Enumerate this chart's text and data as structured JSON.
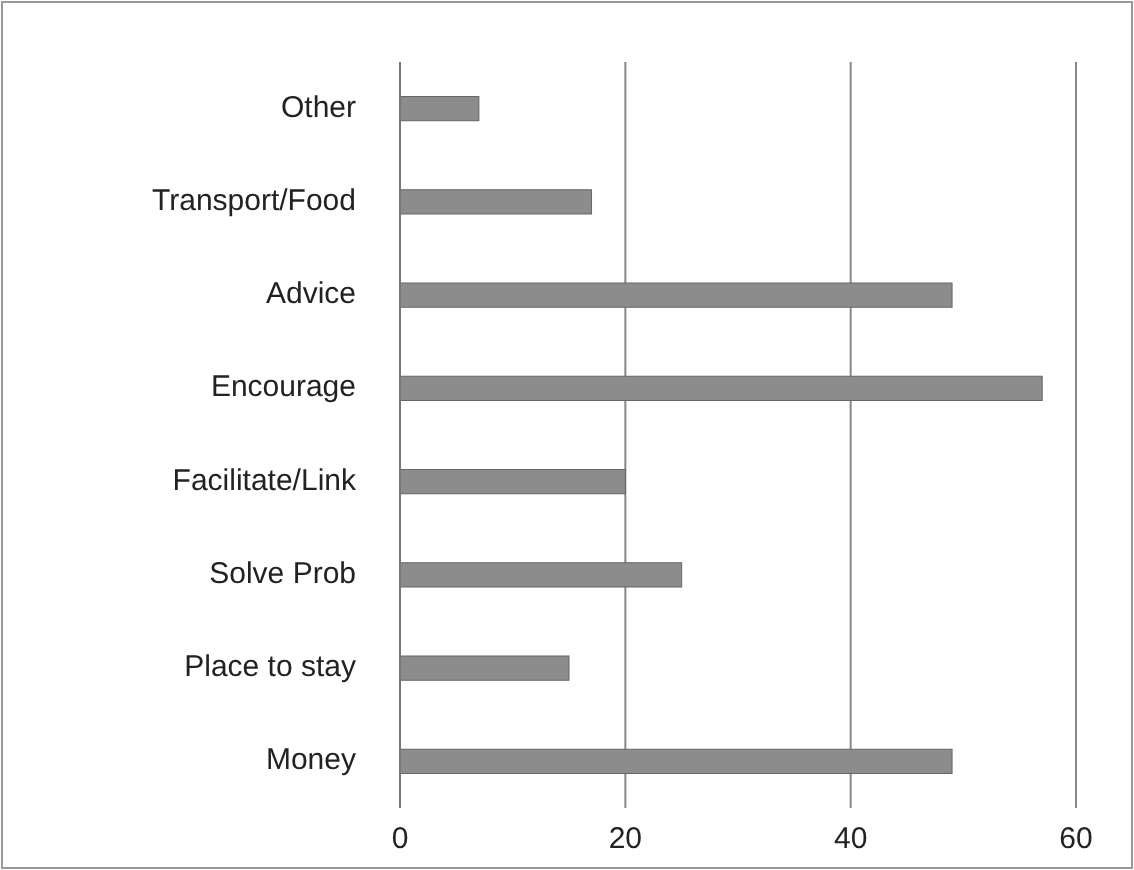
{
  "chart_data": {
    "type": "bar",
    "orientation": "horizontal",
    "categories": [
      "Other",
      "Transport/Food",
      "Advice",
      "Encourage",
      "Facilitate/Link",
      "Solve Prob",
      "Place to stay",
      "Money"
    ],
    "values": [
      7,
      17,
      49,
      57,
      20,
      25,
      15,
      49
    ],
    "color": "#8c8c8c",
    "xlim": [
      0,
      60
    ],
    "xticks": [
      0,
      20,
      40,
      60
    ],
    "grid": "x"
  }
}
